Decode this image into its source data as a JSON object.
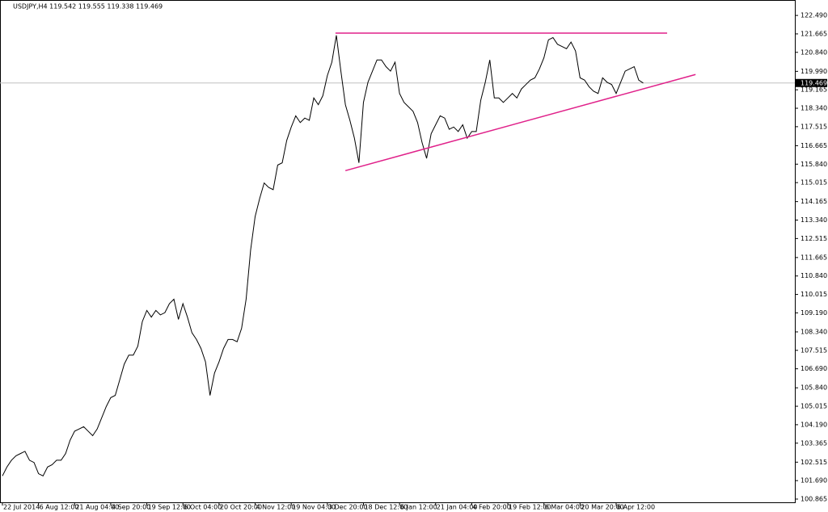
{
  "chart_data": {
    "type": "line",
    "title": "USDJPY,H4  119.542 119.555 119.338 119.469",
    "categories": [
      "22 Jul 2014",
      null,
      null,
      null,
      null,
      null,
      null,
      null,
      "6 Aug 12:00",
      null,
      null,
      null,
      null,
      null,
      null,
      null,
      "21 Aug 04:00",
      null,
      null,
      null,
      null,
      null,
      null,
      null,
      "4 Sep 20:00",
      null,
      null,
      null,
      null,
      null,
      null,
      null,
      "19 Sep 12:00",
      null,
      null,
      null,
      null,
      null,
      null,
      null,
      "6 Oct 04:00",
      null,
      null,
      null,
      null,
      null,
      null,
      null,
      "20 Oct 20:00",
      null,
      null,
      null,
      null,
      null,
      null,
      null,
      "4 Nov 12:00",
      null,
      null,
      null,
      null,
      null,
      null,
      null,
      "19 Nov 04:00",
      null,
      null,
      null,
      null,
      null,
      null,
      null,
      "3 Dec 20:00",
      null,
      null,
      null,
      null,
      null,
      null,
      null,
      "18 Dec 12:00",
      null,
      null,
      null,
      null,
      null,
      null,
      null,
      "6 Jan 12:00",
      null,
      null,
      null,
      null,
      null,
      null,
      null,
      "21 Jan 04:00",
      null,
      null,
      null,
      null,
      null,
      null,
      null,
      "4 Feb 20:00",
      null,
      null,
      null,
      null,
      null,
      null,
      null,
      "19 Feb 12:00",
      null,
      null,
      null,
      null,
      null,
      null,
      null,
      "6 Mar 04:00",
      null,
      null,
      null,
      null,
      null,
      null,
      null,
      "20 Mar 20:00",
      null,
      null,
      null,
      null,
      null,
      null,
      null,
      "6 Apr 12:00",
      null,
      null,
      null,
      null,
      null,
      null
    ],
    "series": [
      {
        "name": "USDJPY",
        "color": "#000000",
        "values": [
          101.9,
          102.3,
          102.6,
          102.8,
          102.9,
          103.0,
          102.6,
          102.5,
          102.0,
          101.9,
          102.3,
          102.4,
          102.6,
          102.6,
          102.9,
          103.5,
          103.9,
          104.0,
          104.1,
          103.9,
          103.7,
          104.0,
          104.5,
          105.0,
          105.4,
          105.5,
          106.2,
          106.9,
          107.3,
          107.3,
          107.7,
          108.8,
          109.3,
          109.0,
          109.3,
          109.1,
          109.2,
          109.6,
          109.8,
          108.9,
          109.6,
          109.0,
          108.3,
          108.0,
          107.6,
          107.0,
          105.5,
          106.5,
          107.0,
          107.6,
          108.0,
          108.0,
          107.9,
          108.5,
          109.8,
          112.0,
          113.5,
          114.3,
          115.0,
          114.8,
          114.7,
          115.8,
          115.9,
          116.9,
          117.5,
          118.0,
          117.7,
          117.9,
          117.8,
          118.8,
          118.5,
          118.9,
          119.8,
          120.4,
          121.6,
          120.0,
          118.5,
          117.8,
          117.0,
          115.9,
          118.6,
          119.5,
          120.0,
          120.5,
          120.5,
          120.2,
          120.0,
          120.4,
          119.0,
          118.6,
          118.4,
          118.2,
          117.7,
          116.8,
          116.1,
          117.2,
          117.6,
          118.0,
          117.9,
          117.4,
          117.5,
          117.3,
          117.6,
          117.0,
          117.3,
          117.3,
          118.7,
          119.5,
          120.5,
          118.8,
          118.8,
          118.6,
          118.8,
          119.0,
          118.8,
          119.2,
          119.4,
          119.6,
          119.7,
          120.1,
          120.6,
          121.4,
          121.5,
          121.2,
          121.1,
          121.0,
          121.3,
          120.9,
          119.7,
          119.6,
          119.3,
          119.1,
          119.0,
          119.7,
          119.5,
          119.4,
          119.0,
          119.5,
          120.0,
          120.1,
          120.2,
          119.6,
          119.469
        ]
      }
    ],
    "last_price": 119.469,
    "trendlines": [
      {
        "color": "#e0218a",
        "x": [
          73.8,
          147.3
        ],
        "y": [
          121.7,
          121.7
        ]
      },
      {
        "color": "#e0218a",
        "x": [
          76,
          153.6
        ],
        "y": [
          115.55,
          119.85
        ]
      }
    ],
    "ylim": [
      100.72,
      123.18
    ],
    "yticks": [
      {
        "value": 122.49,
        "label": "122.490"
      },
      121.665,
      {
        "value": 120.84,
        "label": "120.840"
      },
      {
        "value": 119.99,
        "label": "119.990"
      },
      119.165,
      {
        "value": 118.34,
        "label": "118.340"
      },
      117.515,
      116.665,
      {
        "value": 115.84,
        "label": "115.840"
      },
      115.015,
      114.165,
      {
        "value": 113.34,
        "label": "113.340"
      },
      112.515,
      111.665,
      {
        "value": 110.84,
        "label": "110.840"
      },
      110.015,
      {
        "value": 109.19,
        "label": "109.190"
      },
      {
        "value": 108.34,
        "label": "108.340"
      },
      107.515,
      {
        "value": 106.69,
        "label": "106.690"
      },
      {
        "value": 105.84,
        "label": "105.840"
      },
      105.015,
      {
        "value": 104.19,
        "label": "104.190"
      },
      103.365,
      102.515,
      {
        "value": 101.69,
        "label": "101.690"
      },
      100.865
    ]
  }
}
